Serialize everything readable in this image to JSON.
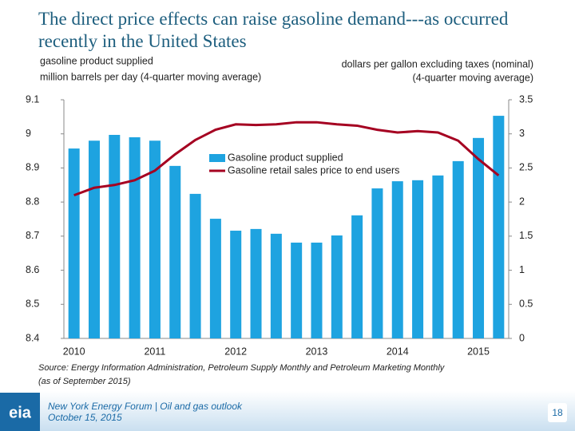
{
  "chart_data": {
    "type": "bar",
    "title": "The direct price effects can raise gasoline demand---as occurred recently in the United States",
    "y_label": [
      "gasoline product supplied",
      "million barrels per day (4-quarter moving average)"
    ],
    "y2_label": [
      "dollars per gallon excluding taxes (nominal)",
      "(4-quarter moving average)"
    ],
    "categories": [
      "2010",
      null,
      null,
      null,
      "2011",
      null,
      null,
      null,
      "2012",
      null,
      null,
      null,
      "2013",
      null,
      null,
      null,
      "2014",
      null,
      null,
      null,
      "2015",
      null
    ],
    "series": [
      {
        "name": "Gasoline product supplied",
        "type": "bar",
        "color": "#1ea3e0",
        "values": [
          8.957,
          8.98,
          8.997,
          8.99,
          8.98,
          8.906,
          8.824,
          8.751,
          8.716,
          8.721,
          8.707,
          8.681,
          8.681,
          8.702,
          8.761,
          8.84,
          8.861,
          8.864,
          8.878,
          8.92,
          8.988,
          9.053
        ]
      },
      {
        "name": "Gasoline retail sales price to end users",
        "type": "line",
        "axis": "y2",
        "color": "#a50021",
        "values": [
          2.1,
          2.21,
          2.25,
          2.32,
          2.46,
          2.7,
          2.91,
          3.06,
          3.14,
          3.13,
          3.14,
          3.17,
          3.17,
          3.14,
          3.12,
          3.06,
          3.02,
          3.04,
          3.02,
          2.9,
          2.63,
          2.39
        ]
      }
    ],
    "ylim": [
      8.4,
      9.1
    ],
    "yticks": [
      8.4,
      8.5,
      8.6,
      8.7,
      8.8,
      8.9,
      9,
      9.1
    ],
    "y2lim": [
      0,
      3.5
    ],
    "y2ticks": [
      0,
      0.5,
      1,
      1.5,
      2,
      2.5,
      3,
      3.5
    ],
    "legend": "center",
    "source": [
      "Source: Energy Information Administration, Petroleum Supply Monthly and Petroleum Marketing Monthly",
      "(as of September 2015)"
    ]
  },
  "footer": {
    "logo": "eia",
    "event": "New York Energy Forum | Oil and gas outlook",
    "date": "October 15, 2015",
    "page": "18"
  }
}
